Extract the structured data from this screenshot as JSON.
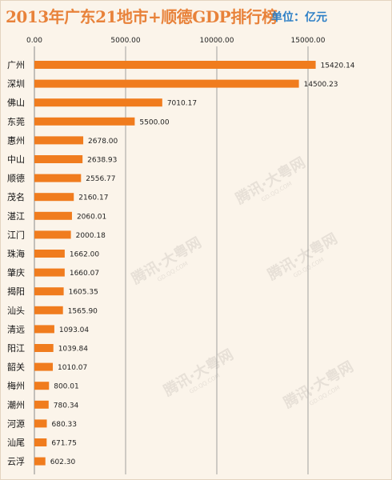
{
  "header": {
    "title": "2013年广东21地市+顺德GDP排行榜",
    "unit": "单位：亿元"
  },
  "watermark": {
    "text": "腾讯·大粤网",
    "sub": "GD.QQ.COM"
  },
  "colors": {
    "bar": "#f07c1e",
    "title": "#e8823a",
    "unit": "#2d7fc6",
    "grid": "#8a8a8a"
  },
  "chart_data": {
    "type": "bar",
    "orientation": "horizontal",
    "categories": [
      "广州",
      "深圳",
      "佛山",
      "东莞",
      "惠州",
      "中山",
      "顺德",
      "茂名",
      "湛江",
      "江门",
      "珠海",
      "肇庆",
      "揭阳",
      "汕头",
      "清远",
      "阳江",
      "韶关",
      "梅州",
      "潮州",
      "河源",
      "汕尾",
      "云浮"
    ],
    "values": [
      15420.14,
      14500.23,
      7010.17,
      5500.0,
      2678.0,
      2638.93,
      2556.77,
      2160.17,
      2060.01,
      2000.18,
      1662.0,
      1660.07,
      1605.35,
      1565.9,
      1093.04,
      1039.84,
      1010.07,
      800.01,
      780.34,
      680.33,
      671.75,
      602.3
    ],
    "value_labels": [
      "15420.14",
      "14500.23",
      "7010.17",
      "5500.00",
      "2678.00",
      "2638.93",
      "2556.77",
      "2160.17",
      "2060.01",
      "2000.18",
      "1662.00",
      "1660.07",
      "1605.35",
      "1565.90",
      "1093.04",
      "1039.84",
      "1010.07",
      "800.01",
      "780.34",
      "680.33",
      "671.75",
      "602.30"
    ],
    "xlim": [
      0,
      20000
    ],
    "x_ticks": [
      0,
      5000,
      10000,
      15000
    ],
    "x_tick_labels": [
      "0.00",
      "5000.00",
      "10000.00",
      "15000.00"
    ],
    "x_axis_position": "top",
    "grid": true,
    "legend": "none",
    "title": "2013年广东21地市+顺德GDP排行榜"
  }
}
